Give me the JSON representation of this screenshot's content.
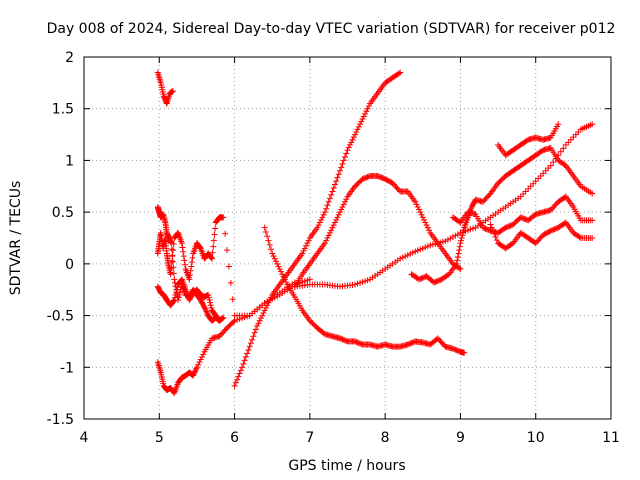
{
  "chart_data": {
    "type": "scatter",
    "title": "Day 008 of 2024, Sidereal Day-to-day VTEC variation (SDTVAR) for receiver p012",
    "xlabel": "GPS time / hours",
    "ylabel": "SDTVAR / TECUs",
    "xlim": [
      4,
      11
    ],
    "ylim": [
      -1.5,
      2
    ],
    "xticks": [
      4,
      5,
      6,
      7,
      8,
      9,
      10,
      11
    ],
    "yticks": [
      -1.5,
      -1,
      -0.5,
      0,
      0.5,
      1,
      1.5,
      2
    ],
    "xtick_labels": [
      "4",
      "5",
      "6",
      "7",
      "8",
      "9",
      "10",
      "11"
    ],
    "ytick_labels": [
      "-1.5",
      "-1",
      "-0.5",
      "0",
      "0.5",
      "1",
      "1.5",
      "2"
    ],
    "grid": true,
    "marker": "+",
    "color": "#ff0000",
    "series": [
      {
        "name": "s1",
        "x": [
          4.98,
          5.02,
          5.06,
          5.1,
          5.14,
          5.18
        ],
        "y": [
          1.85,
          1.75,
          1.62,
          1.55,
          1.65,
          1.67
        ]
      },
      {
        "name": "s2",
        "x": [
          4.98,
          5.02,
          5.06,
          5.1,
          5.15,
          5.2,
          5.25,
          5.3,
          5.35,
          5.4,
          5.45,
          5.5,
          5.6,
          5.7,
          5.8,
          5.9,
          6.0,
          6.2,
          6.4,
          6.6,
          6.8,
          7.0
        ],
        "y": [
          -0.95,
          -1.05,
          -1.18,
          -1.22,
          -1.2,
          -1.25,
          -1.15,
          -1.1,
          -1.08,
          -1.05,
          -1.08,
          -1.0,
          -0.85,
          -0.72,
          -0.7,
          -0.62,
          -0.55,
          -0.5,
          -0.38,
          -0.3,
          -0.2,
          -0.15
        ]
      },
      {
        "name": "s3",
        "x": [
          4.98,
          5.0,
          5.02,
          5.05,
          5.08,
          5.1,
          5.12,
          5.15,
          5.2,
          5.25,
          5.3,
          5.35,
          5.4,
          5.45,
          5.5,
          5.55,
          5.6,
          5.65,
          5.7,
          5.75,
          5.8,
          5.85,
          6.0,
          6.2,
          6.4,
          6.6,
          6.8
        ],
        "y": [
          0.1,
          0.2,
          0.3,
          0.15,
          0.25,
          0.1,
          0.0,
          -0.1,
          0.25,
          0.3,
          0.2,
          -0.05,
          -0.15,
          0.1,
          0.2,
          0.15,
          0.05,
          0.1,
          0.05,
          0.4,
          0.45,
          0.45,
          -0.5,
          -0.5,
          -0.38,
          -0.28,
          -0.18
        ]
      },
      {
        "name": "s4",
        "x": [
          4.98,
          5.0,
          5.02,
          5.05,
          5.08,
          5.1,
          5.13,
          5.16,
          5.2,
          5.25,
          5.3,
          5.35,
          5.4,
          5.45,
          5.5,
          5.55,
          5.6,
          5.65,
          5.7,
          5.75,
          5.8
        ],
        "y": [
          0.55,
          0.5,
          0.45,
          0.48,
          0.4,
          0.3,
          0.25,
          0.2,
          -0.15,
          -0.35,
          -0.2,
          -0.3,
          -0.32,
          -0.25,
          -0.3,
          -0.35,
          -0.42,
          -0.5,
          -0.55,
          -0.52,
          -0.55
        ]
      },
      {
        "name": "s5",
        "x": [
          4.98,
          5.02,
          5.06,
          5.1,
          5.15,
          5.2,
          5.25,
          5.3,
          5.35,
          5.4,
          5.45,
          5.5,
          5.55,
          5.6,
          5.65,
          5.7,
          5.75,
          5.8,
          5.85
        ],
        "y": [
          -0.22,
          -0.28,
          -0.3,
          -0.35,
          -0.4,
          -0.35,
          -0.2,
          -0.15,
          -0.25,
          -0.35,
          -0.28,
          -0.25,
          -0.3,
          -0.32,
          -0.3,
          -0.45,
          -0.5,
          -0.55,
          -0.52
        ]
      },
      {
        "name": "s6",
        "x": [
          6.0,
          6.1,
          6.2,
          6.3,
          6.4,
          6.5,
          6.6,
          6.7,
          6.8,
          6.9,
          7.0,
          7.1,
          7.2,
          7.3,
          7.4,
          7.5,
          7.6,
          7.7,
          7.8,
          7.9,
          8.0,
          8.1,
          8.2
        ],
        "y": [
          -1.18,
          -1.0,
          -0.8,
          -0.6,
          -0.45,
          -0.3,
          -0.2,
          -0.1,
          0.0,
          0.1,
          0.25,
          0.35,
          0.5,
          0.7,
          0.9,
          1.1,
          1.25,
          1.4,
          1.55,
          1.65,
          1.75,
          1.8,
          1.85
        ]
      },
      {
        "name": "s7",
        "x": [
          6.4,
          6.5,
          6.6,
          6.7,
          6.8,
          6.9,
          7.0,
          7.1,
          7.2,
          7.3,
          7.4,
          7.5,
          7.6,
          7.7,
          7.8,
          7.9,
          8.0,
          8.1,
          8.2,
          8.3,
          8.4,
          8.5,
          8.6,
          8.7,
          8.8,
          8.9,
          9.0,
          9.05
        ],
        "y": [
          0.35,
          0.1,
          -0.05,
          -0.2,
          -0.32,
          -0.45,
          -0.55,
          -0.62,
          -0.68,
          -0.7,
          -0.72,
          -0.75,
          -0.75,
          -0.78,
          -0.78,
          -0.8,
          -0.78,
          -0.8,
          -0.8,
          -0.78,
          -0.75,
          -0.76,
          -0.78,
          -0.72,
          -0.8,
          -0.82,
          -0.85,
          -0.86
        ]
      },
      {
        "name": "s8",
        "x": [
          6.8,
          6.9,
          7.0,
          7.1,
          7.2,
          7.3,
          7.4,
          7.5,
          7.6,
          7.7,
          7.8,
          7.9,
          8.0,
          8.1,
          8.2,
          8.3,
          8.4,
          8.5,
          8.6,
          8.7,
          8.8,
          8.9,
          9.0
        ],
        "y": [
          -0.22,
          -0.1,
          0.0,
          0.1,
          0.2,
          0.35,
          0.5,
          0.65,
          0.75,
          0.82,
          0.85,
          0.85,
          0.82,
          0.78,
          0.7,
          0.7,
          0.6,
          0.45,
          0.3,
          0.2,
          0.1,
          0.0,
          -0.05
        ]
      },
      {
        "name": "s9",
        "x": [
          6.8,
          7.0,
          7.2,
          7.4,
          7.6,
          7.8,
          8.0,
          8.2,
          8.4,
          8.6,
          8.8,
          9.0,
          9.2,
          9.4,
          9.6,
          9.8,
          10.0,
          10.2,
          10.4,
          10.6,
          10.75
        ],
        "y": [
          -0.22,
          -0.2,
          -0.2,
          -0.22,
          -0.2,
          -0.15,
          -0.05,
          0.05,
          0.12,
          0.18,
          0.22,
          0.3,
          0.35,
          0.45,
          0.55,
          0.65,
          0.8,
          0.95,
          1.15,
          1.3,
          1.35
        ]
      },
      {
        "name": "s10",
        "x": [
          8.35,
          8.45,
          8.55,
          8.65,
          8.75,
          8.85,
          8.95,
          9.0,
          9.05,
          9.1,
          9.15,
          9.2,
          9.3,
          9.4,
          9.5,
          9.6,
          9.7,
          9.8,
          9.9,
          10.0,
          10.1,
          10.2,
          10.3,
          10.4,
          10.5,
          10.6,
          10.75
        ],
        "y": [
          -0.1,
          -0.15,
          -0.12,
          -0.18,
          -0.15,
          -0.1,
          0.0,
          0.2,
          0.35,
          0.45,
          0.55,
          0.62,
          0.6,
          0.68,
          0.78,
          0.85,
          0.9,
          0.95,
          1.0,
          1.05,
          1.1,
          1.12,
          1.0,
          0.95,
          0.85,
          0.75,
          0.68
        ]
      },
      {
        "name": "s11",
        "x": [
          8.9,
          9.0,
          9.1,
          9.2,
          9.3,
          9.4,
          9.5,
          9.6,
          9.7,
          9.8,
          9.9,
          10.0,
          10.1,
          10.2,
          10.3,
          10.4,
          10.5,
          10.6,
          10.75
        ],
        "y": [
          0.45,
          0.4,
          0.5,
          0.48,
          0.35,
          0.32,
          0.3,
          0.35,
          0.38,
          0.45,
          0.42,
          0.48,
          0.5,
          0.52,
          0.6,
          0.65,
          0.55,
          0.42,
          0.42
        ]
      },
      {
        "name": "s12",
        "x": [
          9.5,
          9.6,
          9.7,
          9.8,
          9.9,
          10.0,
          10.1,
          10.2,
          10.3
        ],
        "y": [
          1.15,
          1.05,
          1.1,
          1.15,
          1.2,
          1.22,
          1.2,
          1.22,
          1.35
        ]
      },
      {
        "name": "s13",
        "x": [
          9.4,
          9.5,
          9.6,
          9.7,
          9.8,
          9.9,
          10.0,
          10.1,
          10.2,
          10.3,
          10.4,
          10.5,
          10.6,
          10.75
        ],
        "y": [
          0.38,
          0.2,
          0.15,
          0.2,
          0.3,
          0.25,
          0.2,
          0.28,
          0.32,
          0.35,
          0.4,
          0.3,
          0.25,
          0.25
        ]
      }
    ]
  }
}
